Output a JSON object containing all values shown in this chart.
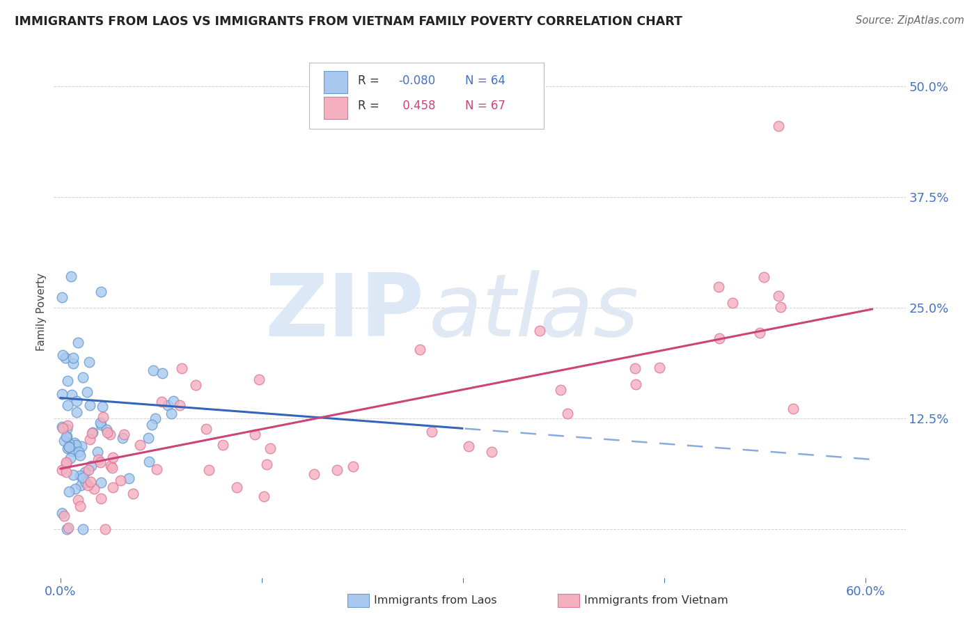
{
  "title": "IMMIGRANTS FROM LAOS VS IMMIGRANTS FROM VIETNAM FAMILY POVERTY CORRELATION CHART",
  "source": "Source: ZipAtlas.com",
  "ylabel": "Family Poverty",
  "xlim": [
    -0.005,
    0.63
  ],
  "ylim": [
    -0.055,
    0.545
  ],
  "ytick_vals": [
    0.0,
    0.125,
    0.25,
    0.375,
    0.5
  ],
  "ytick_labels": [
    "",
    "12.5%",
    "25.0%",
    "37.5%",
    "50.0%"
  ],
  "xtick_vals": [
    0.0,
    0.15,
    0.3,
    0.45,
    0.6
  ],
  "xtick_labels": [
    "0.0%",
    "",
    "",
    "",
    "60.0%"
  ],
  "laos_color": "#a8c8f0",
  "laos_edge_color": "#6699cc",
  "vietnam_color": "#f5b0c0",
  "vietnam_edge_color": "#dd7799",
  "laos_R": -0.08,
  "laos_N": 64,
  "vietnam_R": 0.458,
  "vietnam_N": 67,
  "laos_line_color": "#3366bb",
  "laos_dash_color": "#88aadd",
  "vietnam_line_color": "#cc4477",
  "background_color": "#ffffff",
  "grid_color": "#cccccc",
  "title_color": "#222222",
  "axis_label_color": "#4472c4",
  "watermark_zip": "ZIP",
  "watermark_atlas": "atlas",
  "watermark_color": "#dce8f5"
}
